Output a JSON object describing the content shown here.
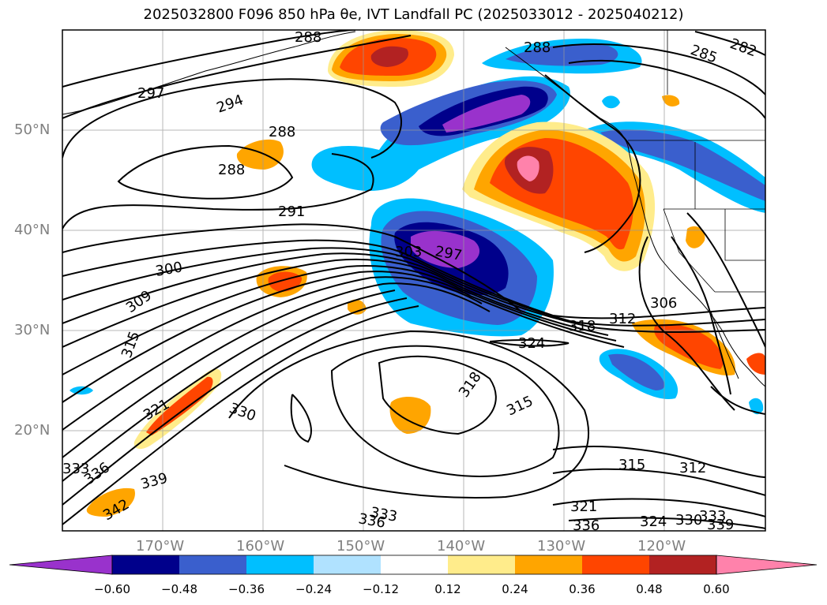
{
  "title": "2025032800 F096 850 hPa θe, IVT Landfall PC (2025033012 - 2025040212)",
  "lat_labels": [
    "50°N",
    "40°N",
    "30°N",
    "20°N"
  ],
  "lon_labels": [
    "170°W",
    "160°W",
    "150°W",
    "140°W",
    "130°W",
    "120°W"
  ],
  "colorbar": {
    "colors": [
      "#9932CC",
      "#00008B",
      "#3A5FCD",
      "#00BFFF",
      "#B0E2FF",
      "#FFFFFF",
      "#FFEC8B",
      "#FFA500",
      "#FF4500",
      "#B22222",
      "#FF82AB"
    ],
    "ticks": [
      "−0.60",
      "−0.48",
      "−0.36",
      "−0.24",
      "−0.12",
      "0.12",
      "0.24",
      "0.36",
      "0.48",
      "0.60"
    ]
  },
  "contour_labels": [
    "288",
    "297",
    "294",
    "288",
    "288",
    "291",
    "300",
    "309",
    "315",
    "297",
    "303",
    "306",
    "312",
    "318",
    "324",
    "318",
    "315",
    "330",
    "321",
    "315",
    "312",
    "321",
    "333",
    "336",
    "324",
    "330",
    "333",
    "336",
    "339",
    "336",
    "339",
    "342",
    "333",
    "285",
    "282",
    "288"
  ]
}
